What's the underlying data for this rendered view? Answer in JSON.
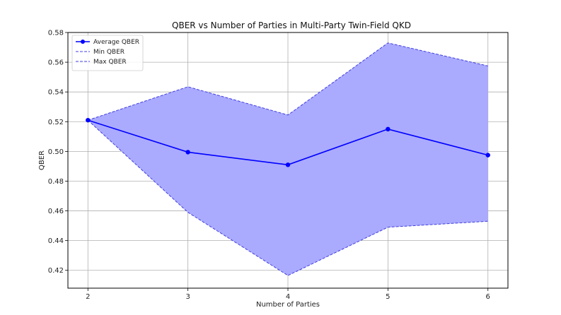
{
  "chart_data": {
    "type": "line",
    "title": "QBER vs Number of Parties in Multi-Party Twin-Field QKD",
    "xlabel": "Number of Parties",
    "ylabel": "QBER",
    "x": [
      2,
      3,
      4,
      5,
      6
    ],
    "xlim": [
      1.8,
      6.2
    ],
    "ylim": [
      0.408,
      0.58
    ],
    "x_ticks": [
      2,
      3,
      4,
      5,
      6
    ],
    "y_ticks": [
      0.42,
      0.44,
      0.46,
      0.48,
      0.5,
      0.52,
      0.54,
      0.56,
      0.58
    ],
    "grid": true,
    "legend_position": "top-left",
    "series": [
      {
        "name": "Average QBER",
        "values": [
          0.521,
          0.4995,
          0.491,
          0.515,
          0.4975
        ],
        "style": "solid",
        "marker": "circle",
        "color": "#0000ff"
      },
      {
        "name": "Min QBER",
        "values": [
          0.521,
          0.459,
          0.4165,
          0.449,
          0.453
        ],
        "style": "dashed",
        "color": "#4040e0"
      },
      {
        "name": "Max QBER",
        "values": [
          0.521,
          0.5435,
          0.5245,
          0.573,
          0.5575
        ],
        "style": "dashed",
        "color": "#4040e0"
      }
    ],
    "fill_between": {
      "lower": "Min QBER",
      "upper": "Max QBER",
      "color": "#aaaaff"
    }
  }
}
